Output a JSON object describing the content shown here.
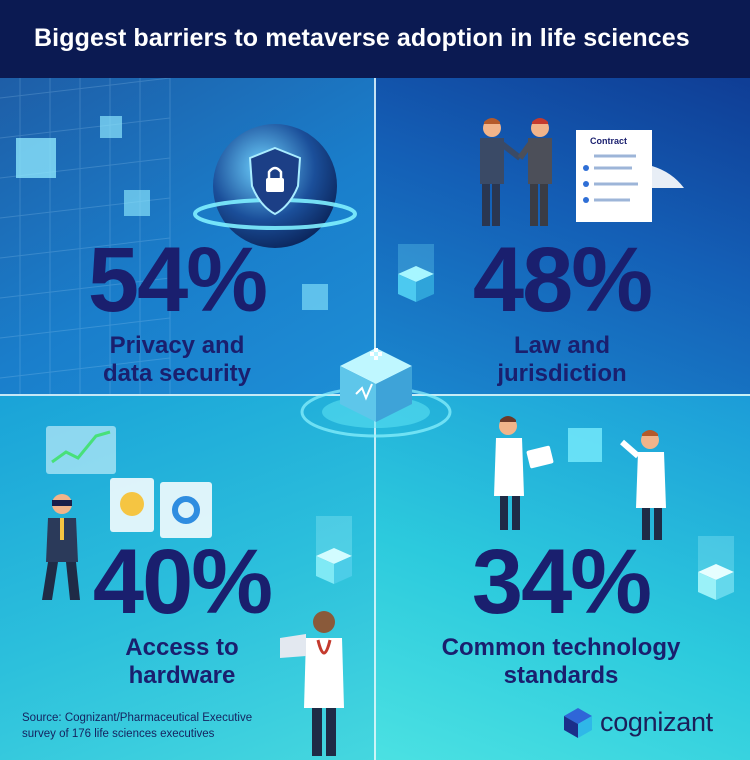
{
  "header": {
    "title": "Biggest barriers to metaverse adoption in life sciences"
  },
  "stats": [
    {
      "percent": "54%",
      "label_line1": "Privacy and",
      "label_line2": "data security"
    },
    {
      "percent": "48%",
      "label_line1": "Law and",
      "label_line2": "jurisdiction"
    },
    {
      "percent": "40%",
      "label_line1": "Access to",
      "label_line2": "hardware"
    },
    {
      "percent": "34%",
      "label_line1": "Common technology",
      "label_line2": "standards"
    }
  ],
  "illustrations": {
    "contract_label": "Contract"
  },
  "footer": {
    "source_line1": "Source: Cognizant/Pharmaceutical Executive",
    "source_line2": "survey of 176 life sciences executives",
    "brand": "cognizant"
  },
  "colors": {
    "header_bg": "#0b1a52",
    "stat_text": "#1a1f6e",
    "accent_cyan": "#7ff0ff"
  }
}
